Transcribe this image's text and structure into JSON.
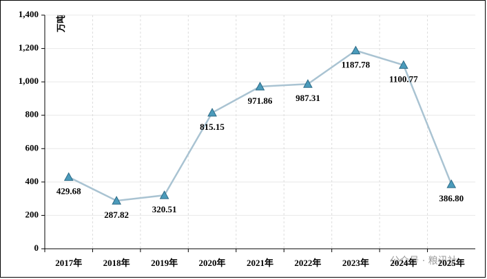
{
  "chart_data": {
    "type": "line",
    "y_label": "万吨",
    "categories": [
      "2017年",
      "2018年",
      "2019年",
      "2020年",
      "2021年",
      "2022年",
      "2023年",
      "2024年",
      "2025年"
    ],
    "series": [
      {
        "color": "#a9c3d2",
        "marker_color": "#4b9bbb",
        "values": [
          429.68,
          287.82,
          320.51,
          815.15,
          971.86,
          987.31,
          1187.78,
          1100.77,
          386.8
        ],
        "value_labels": [
          "429.68",
          "287.82",
          "320.51",
          "815.15",
          "971.86",
          "987.31",
          "1187.78",
          "1100.77",
          "386.80"
        ]
      }
    ],
    "ylim": [
      0,
      1400
    ],
    "yticks": [
      0,
      200,
      400,
      600,
      800,
      {
        "value": 1000,
        "label": "1,000"
      },
      {
        "value": 1200,
        "label": "1,200"
      },
      {
        "value": 1400,
        "label": "1,400"
      }
    ],
    "grid": true,
    "watermark": "公众号 · 粮讯社"
  }
}
